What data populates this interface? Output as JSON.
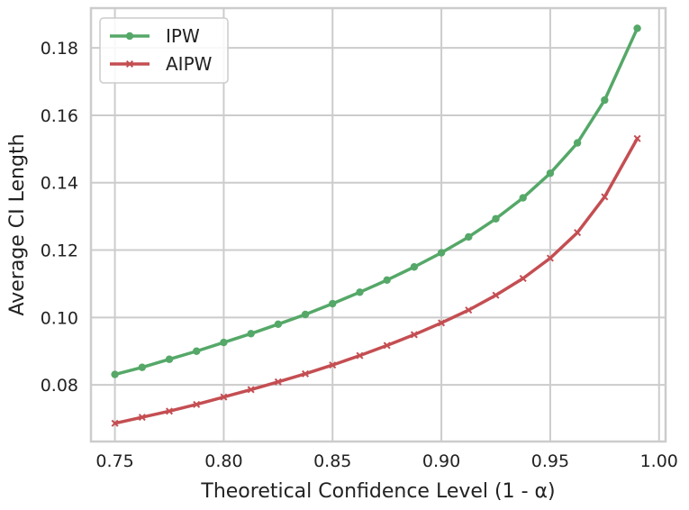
{
  "chart_data": {
    "type": "line",
    "title": "",
    "xlabel": "Theoretical Confidence Level (1 - α)",
    "ylabel": "Average CI Length",
    "xlim": [
      0.739,
      1.003
    ],
    "ylim": [
      0.0632,
      0.1918
    ],
    "xticks": [
      0.75,
      0.8,
      0.85,
      0.9,
      0.95,
      1.0
    ],
    "xtick_labels": [
      "0.75",
      "0.80",
      "0.85",
      "0.90",
      "0.95",
      "1.00"
    ],
    "yticks": [
      0.08,
      0.1,
      0.12,
      0.14,
      0.16,
      0.18
    ],
    "ytick_labels": [
      "0.08",
      "0.10",
      "0.12",
      "0.14",
      "0.16",
      "0.18"
    ],
    "grid": true,
    "legend_position": "top-left",
    "x": [
      0.75,
      0.7625,
      0.775,
      0.7875,
      0.8,
      0.8125,
      0.825,
      0.8375,
      0.85,
      0.8625,
      0.875,
      0.8875,
      0.9,
      0.9125,
      0.925,
      0.9375,
      0.95,
      0.9625,
      0.975,
      0.99
    ],
    "series": [
      {
        "name": "IPW",
        "color": "#55a868",
        "marker": "circle",
        "values": [
          0.0831,
          0.0852,
          0.0876,
          0.09,
          0.0926,
          0.0952,
          0.098,
          0.1009,
          0.1041,
          0.1075,
          0.1111,
          0.115,
          0.1192,
          0.1239,
          0.1293,
          0.1355,
          0.1428,
          0.1518,
          0.1645,
          0.1858
        ]
      },
      {
        "name": "AIPW",
        "color": "#c44e52",
        "marker": "x",
        "values": [
          0.0686,
          0.0704,
          0.0722,
          0.0742,
          0.0764,
          0.0786,
          0.0809,
          0.0833,
          0.0859,
          0.0887,
          0.0917,
          0.0949,
          0.0984,
          0.1022,
          0.1066,
          0.1116,
          0.1176,
          0.1252,
          0.1358,
          0.1531
        ]
      }
    ]
  },
  "style": {
    "grid_color": "#cccccc",
    "axes_edge_color": "#cccccc",
    "text_color": "#222222"
  }
}
